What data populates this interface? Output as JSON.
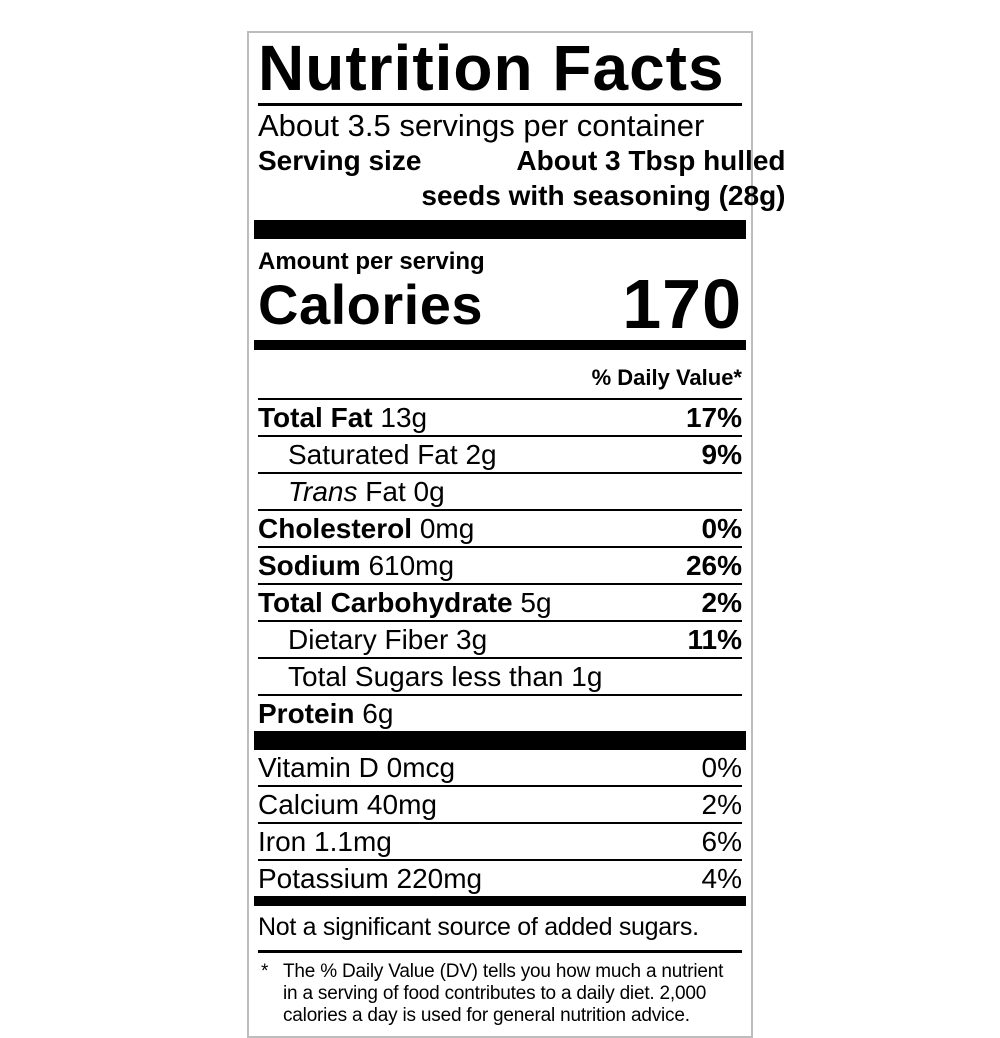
{
  "label": {
    "title": "Nutrition Facts",
    "servings_per_container": "About 3.5 servings per container",
    "serving_size_label": "Serving size",
    "serving_size_line1": "About 3 Tbsp hulled",
    "serving_size_line2": "seeds with seasoning (28g)",
    "amount_per_serving": "Amount per serving",
    "calories_label": "Calories",
    "calories_value": "170",
    "daily_value_header": "% Daily Value*",
    "nutrients": [
      {
        "name": "Total Fat",
        "amount": "13g",
        "dv": "17%"
      },
      {
        "name": "Saturated Fat",
        "amount": "2g",
        "dv": "9%"
      },
      {
        "name_italic": "Trans",
        "name": "Fat",
        "amount": "0g",
        "dv": ""
      },
      {
        "name": "Cholesterol",
        "amount": "0mg",
        "dv": "0%"
      },
      {
        "name": "Sodium",
        "amount": "610mg",
        "dv": "26%"
      },
      {
        "name": "Total Carbohydrate",
        "amount": "5g",
        "dv": "2%"
      },
      {
        "name": "Dietary Fiber",
        "amount": "3g",
        "dv": "11%"
      },
      {
        "name": "Total Sugars",
        "amount": "less than 1g",
        "dv": ""
      },
      {
        "name": "Protein",
        "amount": "6g",
        "dv": ""
      }
    ],
    "vitamins": [
      {
        "name": "Vitamin D",
        "amount": "0mcg",
        "dv": "0%"
      },
      {
        "name": "Calcium",
        "amount": "40mg",
        "dv": "2%"
      },
      {
        "name": "Iron",
        "amount": "1.1mg",
        "dv": "6%"
      },
      {
        "name": "Potassium",
        "amount": "220mg",
        "dv": "4%"
      }
    ],
    "no_added_sugars_note": "Not a significant source of added sugars.",
    "footnote_marker": "*",
    "footnote_lines": [
      "The % Daily Value (DV) tells you how much a nutrient",
      "in a serving of food contributes to a daily diet. 2,000",
      "calories a day is used for general nutrition advice."
    ]
  }
}
